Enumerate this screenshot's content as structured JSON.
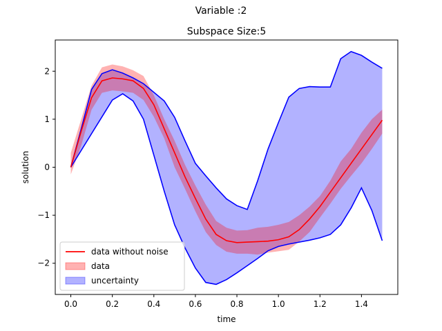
{
  "figure": {
    "suptitle": "Variable :2"
  },
  "chart_data": {
    "type": "line",
    "title": "Subspace Size:5",
    "xlabel": "time",
    "ylabel": "solution",
    "xlim": [
      -0.075,
      1.575
    ],
    "ylim": [
      -2.65,
      2.65
    ],
    "xticks": [
      0.0,
      0.2,
      0.4,
      0.6,
      0.8,
      1.0,
      1.2,
      1.4
    ],
    "xtick_labels": [
      "0.0",
      "0.2",
      "0.4",
      "0.6",
      "0.8",
      "1.0",
      "1.2",
      "1.4"
    ],
    "yticks": [
      -2,
      -1,
      0,
      1,
      2
    ],
    "ytick_labels": [
      "−2",
      "−1",
      "0",
      "1",
      "2"
    ],
    "grid": false,
    "legend_position": "lower-left",
    "x": [
      0.0,
      0.05,
      0.1,
      0.15,
      0.2,
      0.25,
      0.3,
      0.35,
      0.4,
      0.45,
      0.5,
      0.55,
      0.6,
      0.65,
      0.7,
      0.75,
      0.8,
      0.85,
      0.9,
      0.95,
      1.0,
      1.05,
      1.1,
      1.15,
      1.2,
      1.25,
      1.3,
      1.35,
      1.4,
      1.45,
      1.5
    ],
    "series": [
      {
        "name": "data without noise",
        "color": "#ff0000",
        "values": [
          0.0,
          0.75,
          1.45,
          1.8,
          1.86,
          1.84,
          1.8,
          1.64,
          1.3,
          0.8,
          0.3,
          -0.2,
          -0.65,
          -1.08,
          -1.4,
          -1.53,
          -1.57,
          -1.56,
          -1.55,
          -1.54,
          -1.51,
          -1.45,
          -1.3,
          -1.08,
          -0.82,
          -0.52,
          -0.22,
          0.08,
          0.38,
          0.68,
          0.98
        ]
      }
    ],
    "bands": [
      {
        "name": "data",
        "color": "#ff0000",
        "opacity": 0.3,
        "upper": [
          0.3,
          1.0,
          1.7,
          2.08,
          2.14,
          2.1,
          2.02,
          1.9,
          1.5,
          1.0,
          0.55,
          0.05,
          -0.38,
          -0.78,
          -1.12,
          -1.26,
          -1.32,
          -1.31,
          -1.26,
          -1.24,
          -1.2,
          -1.14,
          -1.0,
          -0.82,
          -0.6,
          -0.28,
          0.12,
          0.38,
          0.72,
          1.0,
          1.2
        ],
        "lower": [
          -0.15,
          0.45,
          1.2,
          1.55,
          1.6,
          1.58,
          1.55,
          1.4,
          1.05,
          0.6,
          0.0,
          -0.45,
          -0.92,
          -1.35,
          -1.62,
          -1.76,
          -1.8,
          -1.8,
          -1.82,
          -1.78,
          -1.75,
          -1.72,
          -1.55,
          -1.35,
          -1.05,
          -0.76,
          -0.45,
          -0.18,
          0.08,
          0.38,
          0.7
        ]
      },
      {
        "name": "uncertainty",
        "color": "#0000ff",
        "opacity": 0.3,
        "upper": [
          0.0,
          0.8,
          1.62,
          1.95,
          2.03,
          1.96,
          1.86,
          1.74,
          1.56,
          1.38,
          1.04,
          0.55,
          0.08,
          -0.18,
          -0.43,
          -0.66,
          -0.8,
          -0.88,
          -0.28,
          0.38,
          0.93,
          1.46,
          1.64,
          1.68,
          1.67,
          1.67,
          2.26,
          2.41,
          2.33,
          2.19,
          2.06
        ],
        "lower": [
          0.0,
          0.35,
          0.7,
          1.05,
          1.4,
          1.53,
          1.38,
          1.0,
          0.25,
          -0.5,
          -1.2,
          -1.68,
          -2.1,
          -2.4,
          -2.44,
          -2.34,
          -2.2,
          -2.05,
          -1.9,
          -1.74,
          -1.65,
          -1.6,
          -1.56,
          -1.52,
          -1.47,
          -1.4,
          -1.2,
          -0.85,
          -0.43,
          -0.9,
          -1.53
        ]
      }
    ],
    "uncertainty_edge_color": "#0000ff",
    "legend": [
      {
        "label": "data without noise",
        "kind": "line",
        "color": "#ff0000"
      },
      {
        "label": "data",
        "kind": "patch",
        "color": "#ff0000",
        "opacity": 0.3
      },
      {
        "label": "uncertainty",
        "kind": "patch",
        "color": "#0000ff",
        "opacity": 0.3
      }
    ]
  }
}
